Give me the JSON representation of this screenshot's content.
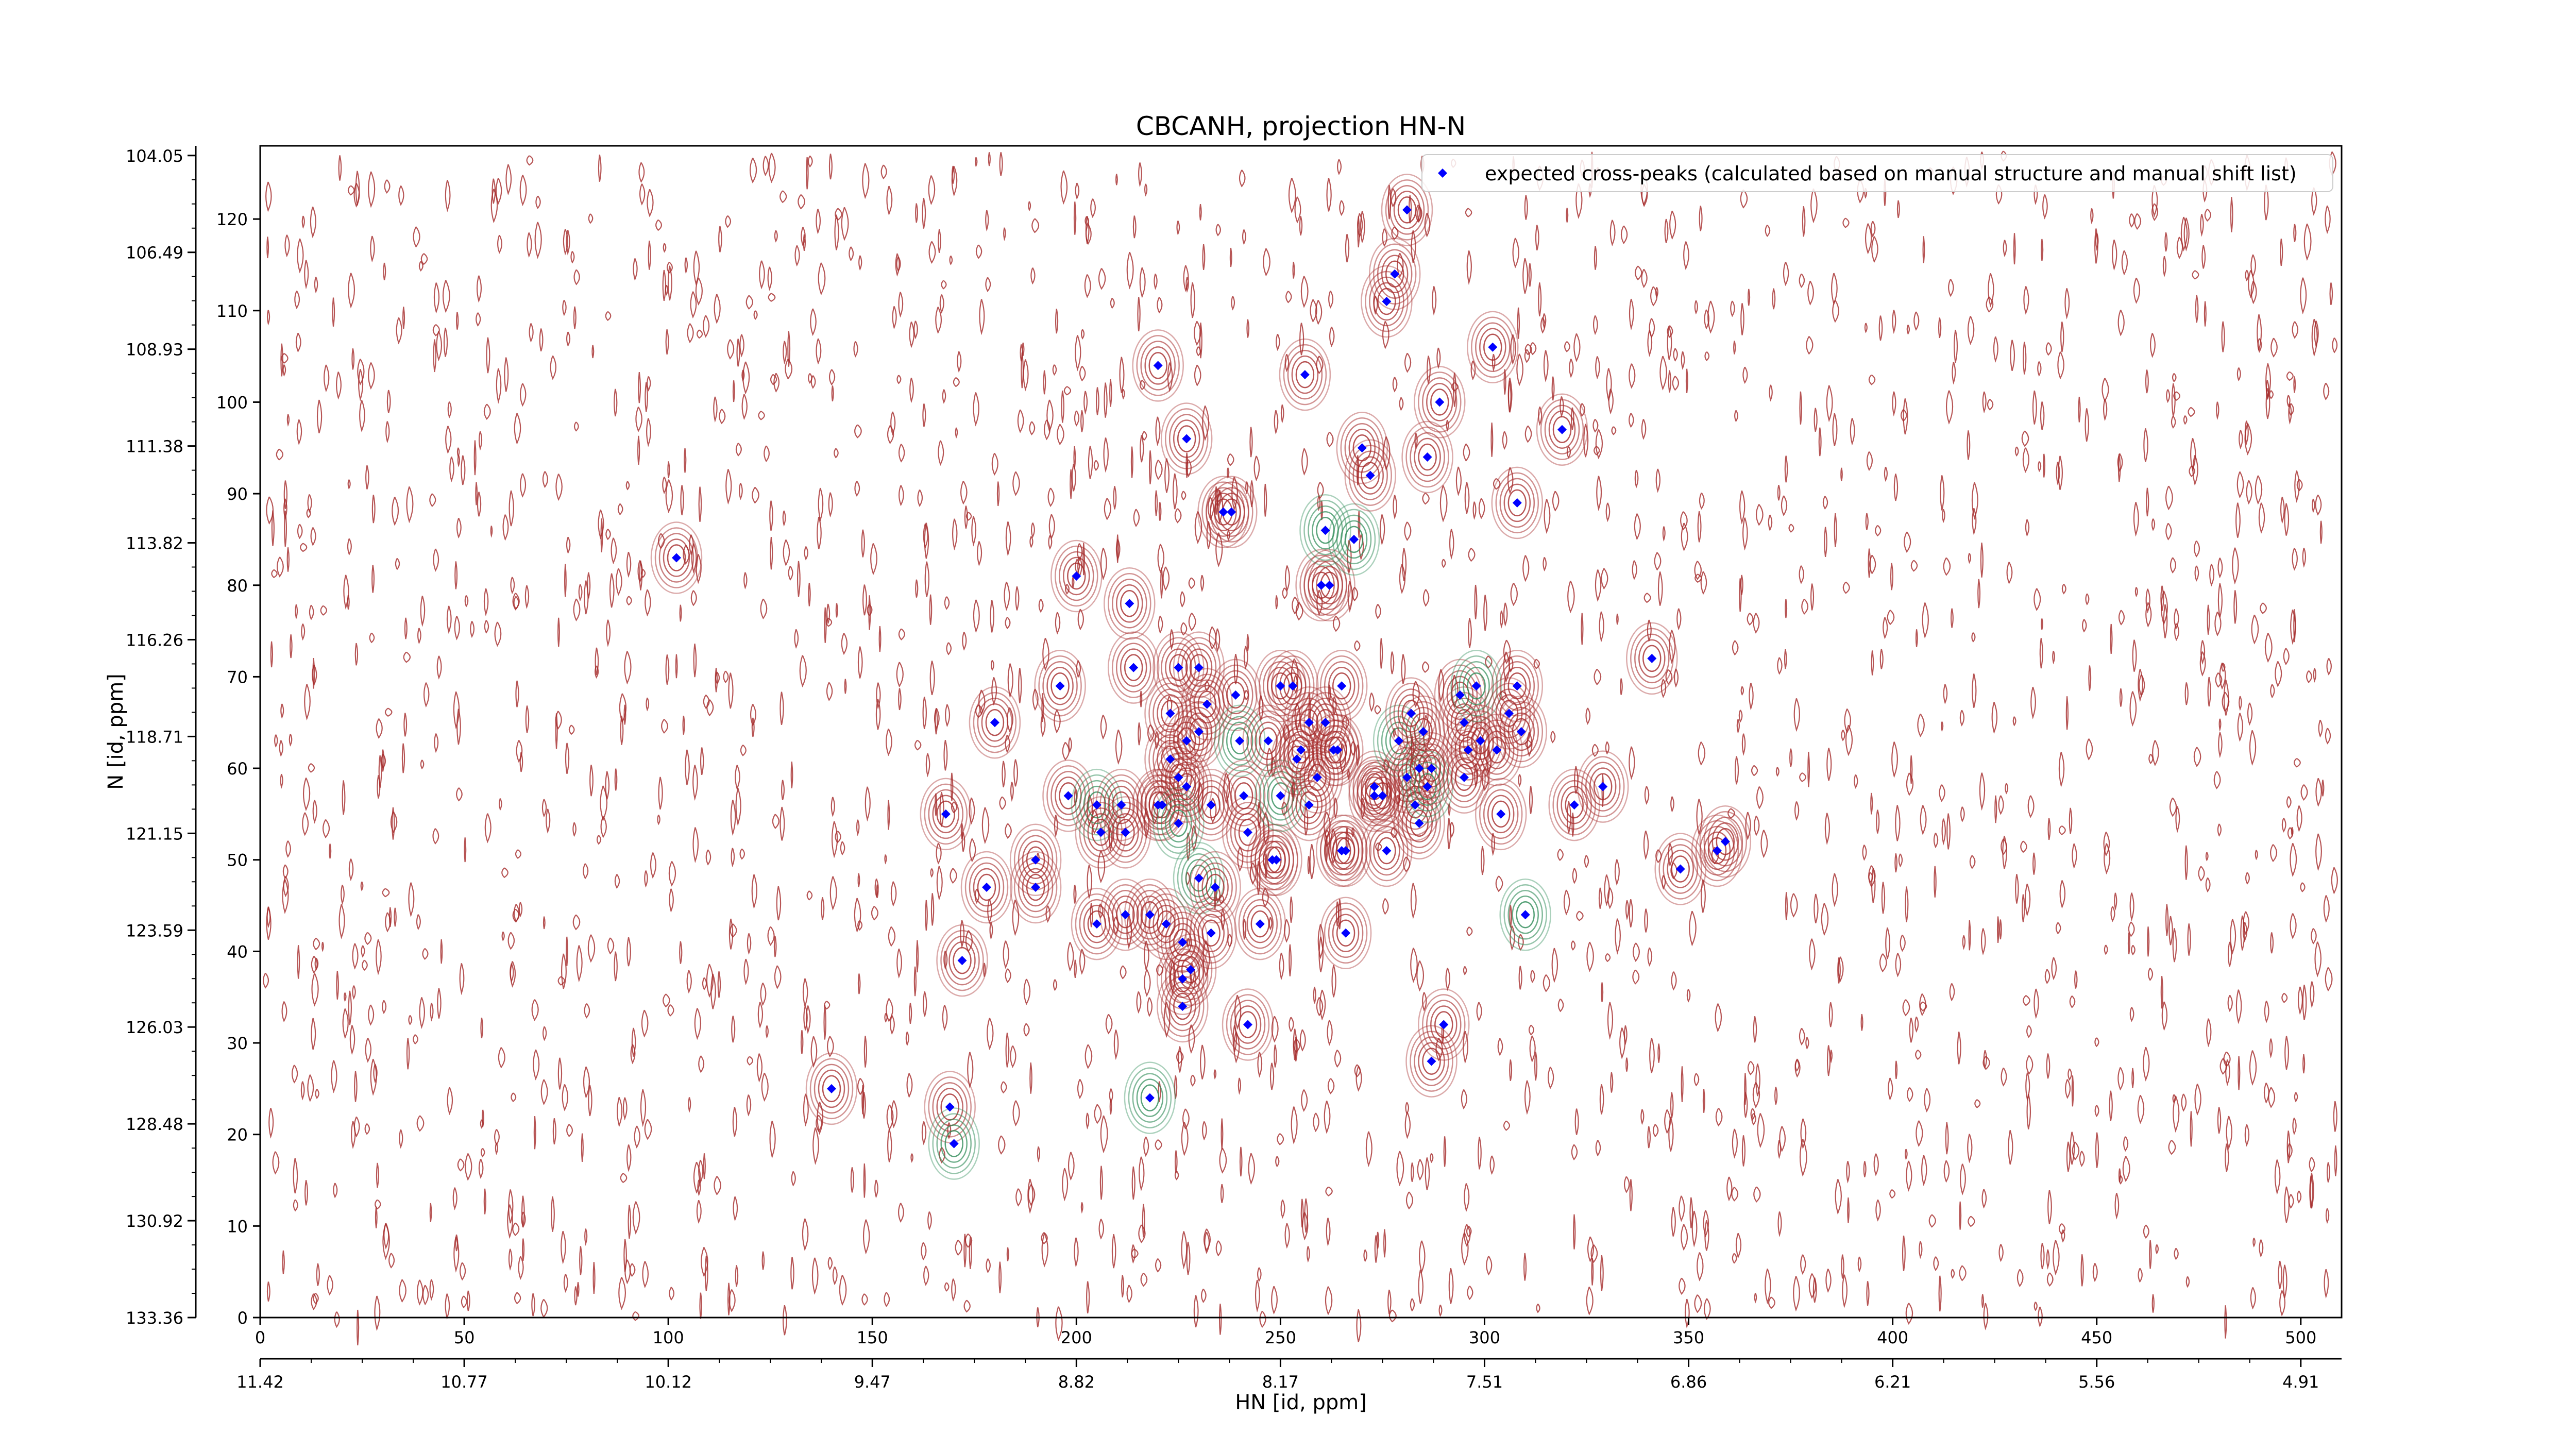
{
  "chart_data": {
    "type": "scatter",
    "title": "CBCANH, projection HN-N",
    "xlabel": "HN [id, ppm]",
    "ylabel": "N [id, ppm]",
    "xlim": [
      0,
      510
    ],
    "ylim": [
      0,
      128
    ],
    "x_ticks": [
      0,
      50,
      100,
      150,
      200,
      250,
      300,
      350,
      400,
      450,
      500
    ],
    "y_ticks": [
      0,
      10,
      20,
      30,
      40,
      50,
      60,
      70,
      80,
      90,
      100,
      110,
      120
    ],
    "x_ppm_ticks": [
      "11.42",
      "10.77",
      "10.12",
      "9.47",
      "8.82",
      "8.17",
      "7.51",
      "6.86",
      "6.21",
      "5.56",
      "4.91"
    ],
    "y_ppm_ticks": [
      "133.36",
      "130.92",
      "128.48",
      "126.03",
      "123.59",
      "121.15",
      "118.71",
      "116.26",
      "113.82",
      "111.38",
      "108.93",
      "106.49",
      "104.05"
    ],
    "legend": {
      "label": "expected cross-peaks (calculated based on manual structure and manual shift list)",
      "position": "top-right"
    },
    "colors": {
      "peak_marker": "#0000ff",
      "positive_contour": "#a52a2a",
      "negative_contour": "#2e8b57"
    },
    "series": [
      {
        "name": "expected cross-peaks (calculated based on manual structure and manual shift list)",
        "points": [
          [
            102,
            83
          ],
          [
            140,
            25
          ],
          [
            168,
            55
          ],
          [
            169,
            23
          ],
          [
            170,
            19
          ],
          [
            172,
            39
          ],
          [
            178,
            47
          ],
          [
            180,
            65
          ],
          [
            190,
            50
          ],
          [
            190,
            47
          ],
          [
            196,
            69
          ],
          [
            198,
            57
          ],
          [
            200,
            81
          ],
          [
            205,
            56
          ],
          [
            205,
            43
          ],
          [
            206,
            53
          ],
          [
            211,
            56
          ],
          [
            212,
            53
          ],
          [
            212,
            44
          ],
          [
            213,
            78
          ],
          [
            214,
            71
          ],
          [
            218,
            44
          ],
          [
            218,
            24
          ],
          [
            220,
            104
          ],
          [
            220,
            56
          ],
          [
            221,
            56
          ],
          [
            222,
            43
          ],
          [
            223,
            61
          ],
          [
            223,
            66
          ],
          [
            225,
            71
          ],
          [
            225,
            59
          ],
          [
            225,
            54
          ],
          [
            226,
            41
          ],
          [
            226,
            37
          ],
          [
            226,
            34
          ],
          [
            227,
            96
          ],
          [
            227,
            63
          ],
          [
            227,
            58
          ],
          [
            228,
            38
          ],
          [
            230,
            64
          ],
          [
            230,
            48
          ],
          [
            230,
            71
          ],
          [
            232,
            67
          ],
          [
            233,
            56
          ],
          [
            233,
            42
          ],
          [
            234,
            47
          ],
          [
            236,
            88
          ],
          [
            238,
            88
          ],
          [
            239,
            68
          ],
          [
            240,
            63
          ],
          [
            241,
            57
          ],
          [
            242,
            53
          ],
          [
            242,
            32
          ],
          [
            245,
            43
          ],
          [
            247,
            63
          ],
          [
            248,
            50
          ],
          [
            249,
            50
          ],
          [
            250,
            69
          ],
          [
            250,
            57
          ],
          [
            253,
            69
          ],
          [
            254,
            61
          ],
          [
            255,
            62
          ],
          [
            256,
            103
          ],
          [
            257,
            56
          ],
          [
            257,
            65
          ],
          [
            259,
            59
          ],
          [
            260,
            80
          ],
          [
            261,
            86
          ],
          [
            261,
            65
          ],
          [
            262,
            80
          ],
          [
            263,
            62
          ],
          [
            264,
            62
          ],
          [
            265,
            51
          ],
          [
            265,
            69
          ],
          [
            266,
            51
          ],
          [
            266,
            42
          ],
          [
            268,
            85
          ],
          [
            270,
            95
          ],
          [
            272,
            92
          ],
          [
            273,
            58
          ],
          [
            273,
            57
          ],
          [
            275,
            57
          ],
          [
            276,
            51
          ],
          [
            276,
            111
          ],
          [
            278,
            114
          ],
          [
            279,
            63
          ],
          [
            281,
            121
          ],
          [
            281,
            59
          ],
          [
            282,
            66
          ],
          [
            283,
            56
          ],
          [
            284,
            54
          ],
          [
            284,
            60
          ],
          [
            285,
            64
          ],
          [
            286,
            94
          ],
          [
            286,
            58
          ],
          [
            287,
            60
          ],
          [
            287,
            28
          ],
          [
            289,
            100
          ],
          [
            290,
            32
          ],
          [
            294,
            68
          ],
          [
            295,
            59
          ],
          [
            295,
            65
          ],
          [
            296,
            62
          ],
          [
            298,
            69
          ],
          [
            299,
            63
          ],
          [
            302,
            106
          ],
          [
            303,
            62
          ],
          [
            304,
            55
          ],
          [
            306,
            66
          ],
          [
            308,
            89
          ],
          [
            308,
            69
          ],
          [
            309,
            64
          ],
          [
            310,
            44
          ],
          [
            319,
            97
          ],
          [
            322,
            56
          ],
          [
            329,
            58
          ],
          [
            341,
            72
          ],
          [
            348,
            49
          ],
          [
            357,
            51
          ],
          [
            359,
            52
          ]
        ]
      }
    ]
  }
}
